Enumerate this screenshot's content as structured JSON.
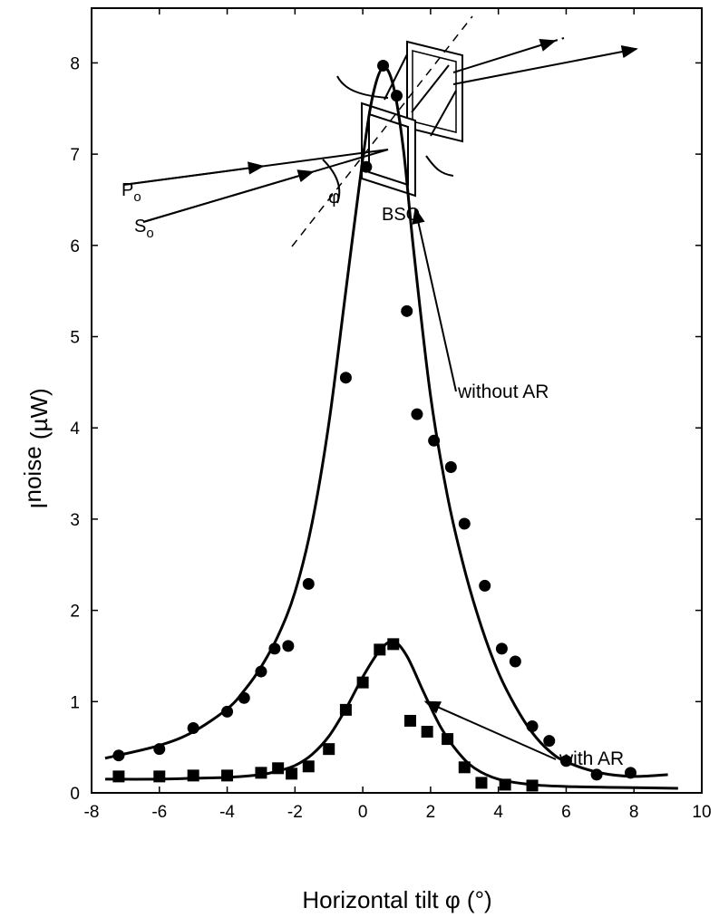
{
  "chart_data": {
    "type": "scatter",
    "xlabel": "Horizontal tilt  φ (°)",
    "ylabel_main": "I",
    "ylabel_sub": "noise",
    "ylabel_unit": " (µW)",
    "xlim": [
      -8,
      10
    ],
    "ylim": [
      0,
      8.6
    ],
    "xticks": [
      -8,
      -6,
      -4,
      -2,
      0,
      2,
      4,
      6,
      8,
      10
    ],
    "yticks": [
      0,
      1,
      2,
      3,
      4,
      5,
      6,
      7,
      8
    ],
    "grid": false,
    "series": [
      {
        "name": "without AR",
        "marker": "circle",
        "points": [
          [
            -7.2,
            0.41
          ],
          [
            -6.0,
            0.48
          ],
          [
            -5.0,
            0.71
          ],
          [
            -4.0,
            0.89
          ],
          [
            -3.5,
            1.04
          ],
          [
            -3.0,
            1.33
          ],
          [
            -2.6,
            1.58
          ],
          [
            -2.2,
            1.61
          ],
          [
            -1.6,
            2.29
          ],
          [
            -0.5,
            4.55
          ],
          [
            0.1,
            6.86
          ],
          [
            0.6,
            7.97
          ],
          [
            1.0,
            7.64
          ],
          [
            1.3,
            5.28
          ],
          [
            1.6,
            4.15
          ],
          [
            2.1,
            3.86
          ],
          [
            2.6,
            3.57
          ],
          [
            3.0,
            2.95
          ],
          [
            3.6,
            2.27
          ],
          [
            4.1,
            1.58
          ],
          [
            4.5,
            1.44
          ],
          [
            5.0,
            0.73
          ],
          [
            5.5,
            0.57
          ],
          [
            6.0,
            0.35
          ],
          [
            6.9,
            0.2
          ],
          [
            7.9,
            0.22
          ]
        ],
        "fit": [
          [
            -7.6,
            0.38
          ],
          [
            -6,
            0.52
          ],
          [
            -5,
            0.67
          ],
          [
            -4,
            0.92
          ],
          [
            -3.5,
            1.12
          ],
          [
            -3,
            1.38
          ],
          [
            -2.5,
            1.72
          ],
          [
            -2,
            2.2
          ],
          [
            -1.5,
            2.95
          ],
          [
            -1,
            4.05
          ],
          [
            -0.5,
            5.5
          ],
          [
            0,
            6.95
          ],
          [
            0.3,
            7.65
          ],
          [
            0.6,
            7.95
          ],
          [
            0.9,
            7.75
          ],
          [
            1.2,
            7.05
          ],
          [
            1.5,
            5.95
          ],
          [
            2,
            4.35
          ],
          [
            2.5,
            3.25
          ],
          [
            3,
            2.45
          ],
          [
            3.5,
            1.82
          ],
          [
            4,
            1.32
          ],
          [
            4.5,
            0.95
          ],
          [
            5,
            0.66
          ],
          [
            5.5,
            0.46
          ],
          [
            6,
            0.34
          ],
          [
            7,
            0.22
          ],
          [
            8,
            0.18
          ],
          [
            9,
            0.2
          ]
        ]
      },
      {
        "name": "with AR",
        "marker": "square",
        "points": [
          [
            -7.2,
            0.18
          ],
          [
            -6.0,
            0.18
          ],
          [
            -5.0,
            0.19
          ],
          [
            -4.0,
            0.19
          ],
          [
            -3.0,
            0.22
          ],
          [
            -2.5,
            0.27
          ],
          [
            -2.1,
            0.21
          ],
          [
            -1.6,
            0.29
          ],
          [
            -1.0,
            0.48
          ],
          [
            -0.5,
            0.91
          ],
          [
            0.0,
            1.21
          ],
          [
            0.5,
            1.57
          ],
          [
            0.9,
            1.63
          ],
          [
            1.4,
            0.79
          ],
          [
            1.9,
            0.67
          ],
          [
            2.5,
            0.59
          ],
          [
            3.0,
            0.28
          ],
          [
            3.5,
            0.11
          ],
          [
            4.2,
            0.09
          ],
          [
            5.0,
            0.08
          ]
        ],
        "fit": [
          [
            -7.6,
            0.15
          ],
          [
            -6,
            0.15
          ],
          [
            -5,
            0.16
          ],
          [
            -4,
            0.17
          ],
          [
            -3,
            0.2
          ],
          [
            -2.5,
            0.24
          ],
          [
            -2,
            0.3
          ],
          [
            -1.5,
            0.42
          ],
          [
            -1,
            0.62
          ],
          [
            -0.5,
            0.92
          ],
          [
            0,
            1.27
          ],
          [
            0.5,
            1.56
          ],
          [
            0.9,
            1.66
          ],
          [
            1.3,
            1.5
          ],
          [
            1.8,
            1.1
          ],
          [
            2.3,
            0.72
          ],
          [
            2.8,
            0.45
          ],
          [
            3.3,
            0.27
          ],
          [
            4,
            0.15
          ],
          [
            5,
            0.09
          ],
          [
            6,
            0.07
          ],
          [
            7.5,
            0.06
          ],
          [
            9.3,
            0.05
          ]
        ]
      }
    ],
    "annotations": [
      {
        "text": "without AR",
        "target": [
          1.55,
          6.4
        ]
      },
      {
        "text": "with AR",
        "target": [
          1.85,
          1.0
        ]
      }
    ]
  },
  "inset": {
    "crystal_label": "BSO",
    "beam_p": "P",
    "beam_p_sub": "o",
    "beam_s": "S",
    "beam_s_sub": "o",
    "angle_label": "φ"
  }
}
